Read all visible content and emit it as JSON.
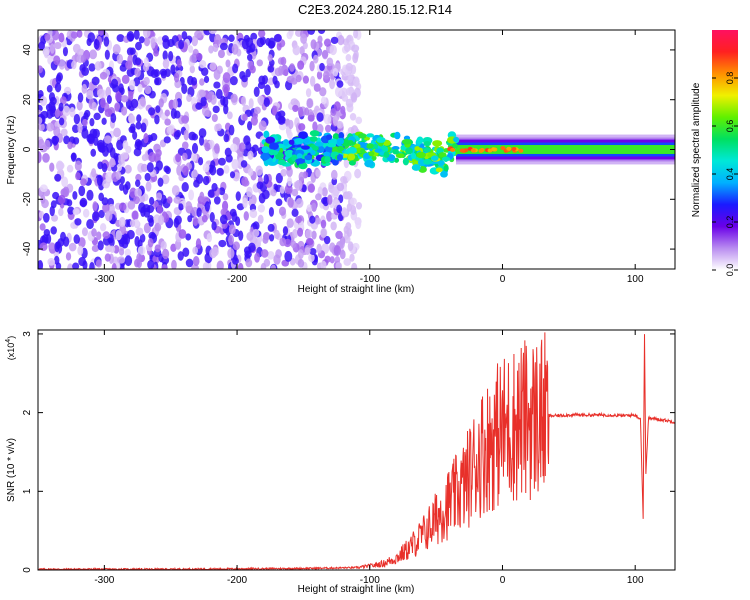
{
  "chart_data": [
    {
      "type": "heatmap",
      "title": "C2E3.2024.280.15.12.R14",
      "xlabel": "Height of straight line (km)",
      "ylabel": "Frequency (Hz)",
      "xlim": [
        -350,
        130
      ],
      "ylim": [
        -48,
        48
      ],
      "x_ticks": [
        -300,
        -200,
        -100,
        0,
        100
      ],
      "y_ticks": [
        -40,
        -20,
        0,
        20,
        40
      ],
      "colorbar": {
        "label": "Normalized spectral amplitude",
        "range": [
          0,
          1
        ],
        "ticks": [
          "0.0",
          "0.2",
          "0.4",
          "0.6",
          "0.8"
        ],
        "colormap": [
          "#ffffff",
          "#b98cf0",
          "#6a00e8",
          "#1a1aff",
          "#00b0ff",
          "#00e8d8",
          "#00e060",
          "#60f000",
          "#f0f000",
          "#ff9000",
          "#ff2020",
          "#ff1060"
        ]
      },
      "regions": [
        {
          "name": "noise",
          "x": [
            -350,
            -120
          ],
          "freq_range": [
            -48,
            48
          ],
          "amplitude": 0.15
        },
        {
          "name": "band-emerging",
          "x": [
            -180,
            -35
          ],
          "center_freq": 0,
          "half_width": 6,
          "amplitude": 0.4
        },
        {
          "name": "band-strong",
          "x": [
            -35,
            130
          ],
          "center_freq": 0,
          "half_width": 4,
          "amplitude": 0.6
        },
        {
          "name": "peak-cores",
          "x": [
            -40,
            20
          ],
          "center_freq": 0,
          "amplitude": 0.9
        }
      ]
    },
    {
      "type": "line",
      "xlabel": "Height of straight line (km)",
      "ylabel": "SNR (10 * v/v)",
      "y_multiplier": "(x10",
      "y_multiplier_exp": "4",
      "xlim": [
        -350,
        130
      ],
      "ylim": [
        0,
        3.05
      ],
      "x_ticks": [
        -300,
        -200,
        -100,
        0,
        100
      ],
      "y_ticks": [
        0,
        1,
        2,
        3
      ],
      "series_color": "#e8302a",
      "series": [
        {
          "x": [
            -350,
            -250,
            -150,
            -110,
            -100,
            -90,
            -80,
            -70,
            -60,
            -50,
            -45,
            -40,
            -35,
            -30,
            -25,
            -20,
            -15,
            -10,
            -5,
            0,
            5,
            10,
            15,
            20,
            25,
            30,
            35,
            40,
            50,
            60,
            70,
            80,
            90,
            100,
            104,
            106,
            107,
            108,
            110,
            115,
            120,
            130
          ],
          "y": [
            0.01,
            0.01,
            0.02,
            0.03,
            0.05,
            0.08,
            0.15,
            0.28,
            0.45,
            0.65,
            0.78,
            0.85,
            0.95,
            1.05,
            1.2,
            1.38,
            1.52,
            1.6,
            1.7,
            1.78,
            1.82,
            1.87,
            1.9,
            1.92,
            1.94,
            1.95,
            1.96,
            1.96,
            1.97,
            1.97,
            1.97,
            1.97,
            1.96,
            1.97,
            1.92,
            0.65,
            3.05,
            1.2,
            1.93,
            1.92,
            1.91,
            1.88
          ]
        }
      ]
    }
  ]
}
